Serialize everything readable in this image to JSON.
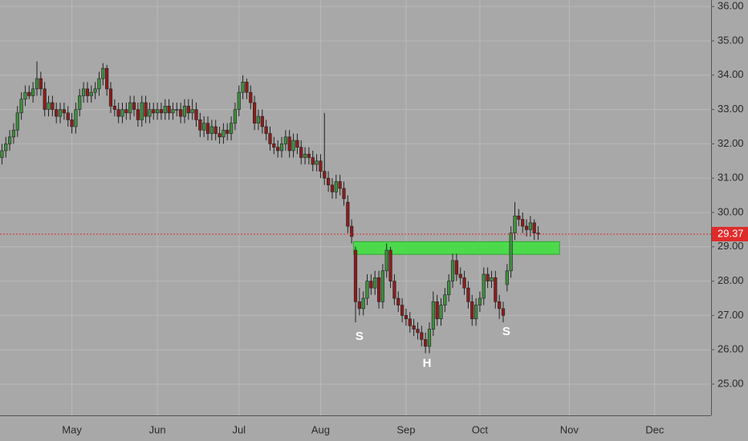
{
  "chart_data": {
    "type": "candlestick",
    "categories": [
      null,
      null,
      null,
      null,
      null,
      null,
      null,
      null,
      null,
      null,
      null,
      null,
      null,
      null,
      null,
      null,
      null,
      null,
      "May",
      null,
      null,
      null,
      null,
      null,
      null,
      null,
      null,
      null,
      null,
      null,
      null,
      null,
      null,
      null,
      null,
      null,
      null,
      null,
      null,
      null,
      "Jun",
      null,
      null,
      null,
      null,
      null,
      null,
      null,
      null,
      null,
      null,
      null,
      null,
      null,
      null,
      null,
      null,
      null,
      null,
      null,
      null,
      "Jul",
      null,
      null,
      null,
      null,
      null,
      null,
      null,
      null,
      null,
      null,
      null,
      null,
      null,
      null,
      null,
      null,
      null,
      null,
      null,
      null,
      "Aug",
      null,
      null,
      null,
      null,
      null,
      null,
      null,
      null,
      null,
      null,
      null,
      null,
      null,
      null,
      null,
      null,
      null,
      null,
      null,
      null,
      null,
      "Sep",
      null,
      null,
      null,
      null,
      null,
      null,
      null,
      null,
      null,
      null,
      null,
      null,
      null,
      null,
      null,
      null,
      null,
      null,
      "Oct",
      null,
      null,
      null,
      null,
      null,
      null,
      null,
      null,
      null,
      null,
      null,
      null,
      null,
      null,
      null,
      null,
      null,
      null,
      null,
      null,
      null,
      null,
      "Nov",
      null,
      null,
      null,
      null,
      null,
      null,
      null,
      null,
      null,
      null,
      null,
      null,
      null,
      null,
      null,
      null,
      null,
      null,
      null,
      null,
      null,
      "Dec",
      null,
      null,
      null,
      null,
      null,
      null,
      null,
      null,
      null,
      null,
      null,
      null,
      null,
      null
    ],
    "open": [
      31.6,
      31.8,
      32.0,
      32.2,
      32.4,
      32.9,
      33.3,
      33.5,
      33.4,
      33.6,
      33.9,
      33.6,
      33.0,
      33.2,
      33.0,
      32.8,
      33.0,
      32.9,
      32.7,
      32.5,
      33.0,
      33.4,
      33.6,
      33.4,
      33.5,
      33.6,
      33.9,
      34.2,
      33.6,
      33.1,
      33.0,
      32.8,
      33.0,
      32.9,
      33.2,
      33.0,
      32.7,
      33.2,
      32.8,
      33.0,
      32.9,
      33.0,
      32.9,
      33.1,
      32.9,
      33.0,
      33.0,
      32.8,
      33.1,
      32.9,
      33.0,
      32.7,
      32.4,
      32.6,
      32.3,
      32.5,
      32.3,
      32.2,
      32.4,
      32.3,
      32.6,
      33.0,
      33.5,
      33.8,
      33.5,
      33.2,
      32.6,
      32.8,
      32.5,
      32.3,
      32.0,
      31.9,
      31.8,
      32.0,
      32.2,
      31.8,
      32.1,
      31.9,
      31.6,
      31.7,
      31.6,
      31.4,
      31.5,
      31.2,
      31.0,
      30.8,
      30.6,
      30.9,
      30.7,
      30.3,
      29.6,
      28.9,
      27.4,
      27.2,
      27.5,
      28.0,
      27.8,
      28.1,
      27.4,
      28.3,
      28.9,
      28.0,
      27.5,
      27.3,
      27.0,
      26.9,
      26.7,
      26.6,
      26.5,
      26.3,
      26.1,
      26.6,
      27.4,
      26.9,
      27.3,
      27.6,
      28.0,
      28.6,
      28.2,
      28.1,
      27.8,
      27.4,
      26.9,
      27.3,
      27.5,
      28.2,
      28.0,
      28.1,
      27.4,
      27.2,
      27.9,
      28.3,
      29.4,
      29.9,
      29.8,
      29.6,
      29.5,
      29.7,
      29.4,
      null,
      null,
      null,
      null,
      null,
      null,
      null,
      null,
      null,
      null,
      null,
      null,
      null,
      null,
      null,
      null,
      null,
      null,
      null,
      null,
      null,
      null,
      null,
      null,
      null,
      null,
      null,
      null,
      null,
      null,
      null,
      null,
      null,
      null,
      null,
      null,
      null,
      null,
      null,
      null,
      null,
      null,
      null,
      null
    ],
    "high": [
      32.0,
      32.2,
      32.4,
      32.6,
      33.1,
      33.5,
      33.7,
      33.7,
      33.8,
      34.4,
      34.1,
      33.8,
      33.4,
      33.4,
      33.2,
      33.2,
      33.2,
      33.1,
      32.9,
      33.2,
      33.6,
      33.8,
      33.8,
      33.7,
      33.8,
      34.1,
      34.35,
      34.3,
      33.8,
      33.3,
      33.2,
      33.2,
      33.2,
      33.4,
      33.4,
      33.2,
      33.4,
      33.4,
      33.2,
      33.2,
      33.2,
      33.2,
      33.3,
      33.3,
      33.2,
      33.2,
      33.2,
      33.3,
      33.3,
      33.3,
      33.2,
      32.9,
      32.8,
      32.8,
      32.7,
      32.7,
      32.5,
      32.6,
      32.6,
      32.8,
      33.2,
      33.7,
      34.0,
      33.9,
      33.7,
      33.4,
      33.0,
      33.0,
      32.7,
      32.5,
      32.2,
      32.1,
      32.2,
      32.4,
      32.4,
      32.3,
      32.3,
      32.1,
      31.9,
      31.9,
      31.8,
      31.7,
      31.7,
      32.9,
      31.2,
      31.0,
      31.1,
      31.1,
      30.9,
      30.5,
      29.8,
      29.0,
      27.8,
      27.7,
      28.2,
      28.2,
      28.3,
      28.3,
      28.5,
      29.1,
      29.0,
      28.2,
      27.7,
      27.5,
      27.2,
      27.1,
      26.9,
      26.8,
      26.7,
      26.5,
      26.8,
      27.7,
      27.6,
      27.5,
      27.8,
      28.2,
      28.8,
      28.8,
      28.4,
      28.3,
      28.0,
      27.6,
      27.5,
      27.7,
      28.4,
      28.4,
      28.3,
      28.3,
      27.6,
      27.4,
      28.5,
      29.6,
      30.3,
      30.1,
      30.0,
      29.8,
      29.9,
      29.8,
      29.6,
      null,
      null,
      null,
      null,
      null,
      null,
      null,
      null,
      null,
      null,
      null,
      null,
      null,
      null,
      null,
      null,
      null,
      null,
      null,
      null,
      null,
      null,
      null,
      null,
      null,
      null,
      null,
      null,
      null,
      null,
      null,
      null,
      null,
      null,
      null,
      null,
      null,
      null,
      null,
      null,
      null,
      null,
      null,
      null
    ],
    "low": [
      31.4,
      31.6,
      31.8,
      32.0,
      32.2,
      32.7,
      33.1,
      33.3,
      33.2,
      33.4,
      33.4,
      32.8,
      32.8,
      32.8,
      32.6,
      32.6,
      32.7,
      32.5,
      32.3,
      32.3,
      32.8,
      33.2,
      33.2,
      33.2,
      33.3,
      33.4,
      33.7,
      33.4,
      32.9,
      32.8,
      32.6,
      32.6,
      32.7,
      32.7,
      32.8,
      32.5,
      32.5,
      32.6,
      32.6,
      32.7,
      32.7,
      32.7,
      32.7,
      32.7,
      32.7,
      32.8,
      32.6,
      32.6,
      32.7,
      32.7,
      32.5,
      32.2,
      32.2,
      32.1,
      32.1,
      32.1,
      32.0,
      32.0,
      32.1,
      32.1,
      32.4,
      32.8,
      33.3,
      33.3,
      33.0,
      32.4,
      32.4,
      32.3,
      32.1,
      31.8,
      31.7,
      31.6,
      31.6,
      31.8,
      31.6,
      31.6,
      31.7,
      31.4,
      31.4,
      31.4,
      31.2,
      31.2,
      31.0,
      30.8,
      30.6,
      30.4,
      30.4,
      30.5,
      30.2,
      29.4,
      29.1,
      26.8,
      27.0,
      27.0,
      27.3,
      27.6,
      27.6,
      27.2,
      27.2,
      28.1,
      27.8,
      27.3,
      27.1,
      26.8,
      26.7,
      26.5,
      26.4,
      26.3,
      26.1,
      25.9,
      25.9,
      26.4,
      26.7,
      26.7,
      27.1,
      27.4,
      27.8,
      28.0,
      27.9,
      27.6,
      27.2,
      26.7,
      26.7,
      27.1,
      27.3,
      27.8,
      27.8,
      27.2,
      26.9,
      26.8,
      27.7,
      28.1,
      29.2,
      29.6,
      29.4,
      29.3,
      29.3,
      29.2,
      29.2,
      null,
      null,
      null,
      null,
      null,
      null,
      null,
      null,
      null,
      null,
      null,
      null,
      null,
      null,
      null,
      null,
      null,
      null,
      null,
      null,
      null,
      null,
      null,
      null,
      null,
      null,
      null,
      null,
      null,
      null,
      null,
      null,
      null,
      null,
      null,
      null,
      null,
      null,
      null,
      null,
      null,
      null,
      null,
      null
    ],
    "close": [
      31.8,
      32.0,
      32.2,
      32.4,
      32.9,
      33.3,
      33.5,
      33.4,
      33.6,
      33.9,
      33.6,
      33.0,
      33.2,
      33.0,
      32.8,
      33.0,
      32.9,
      32.7,
      32.5,
      33.0,
      33.4,
      33.6,
      33.4,
      33.5,
      33.6,
      33.9,
      34.2,
      33.6,
      33.1,
      33.0,
      32.8,
      33.0,
      32.9,
      33.2,
      33.0,
      32.7,
      33.2,
      32.8,
      33.0,
      32.9,
      33.0,
      32.9,
      33.1,
      32.9,
      33.0,
      33.0,
      32.8,
      33.1,
      32.9,
      33.0,
      32.7,
      32.4,
      32.6,
      32.3,
      32.5,
      32.3,
      32.2,
      32.4,
      32.3,
      32.6,
      33.0,
      33.5,
      33.8,
      33.5,
      33.2,
      32.6,
      32.8,
      32.5,
      32.3,
      32.0,
      31.9,
      31.8,
      32.0,
      32.2,
      31.8,
      32.1,
      31.9,
      31.6,
      31.7,
      31.6,
      31.4,
      31.5,
      31.2,
      31.0,
      30.8,
      30.6,
      30.9,
      30.7,
      30.4,
      29.6,
      29.3,
      27.4,
      27.2,
      27.5,
      28.0,
      27.8,
      28.1,
      27.4,
      28.3,
      28.9,
      28.0,
      27.5,
      27.3,
      27.0,
      26.9,
      26.7,
      26.6,
      26.5,
      26.3,
      26.1,
      26.6,
      27.4,
      26.9,
      27.3,
      27.6,
      28.0,
      28.6,
      28.2,
      28.1,
      27.8,
      27.4,
      26.9,
      27.3,
      27.5,
      28.2,
      28.0,
      28.1,
      27.4,
      27.2,
      27.0,
      28.3,
      29.4,
      29.9,
      29.8,
      29.6,
      29.5,
      29.7,
      29.4,
      29.37,
      null,
      null,
      null,
      null,
      null,
      null,
      null,
      null,
      null,
      null,
      null,
      null,
      null,
      null,
      null,
      null,
      null,
      null,
      null,
      null,
      null,
      null,
      null,
      null,
      null,
      null,
      null,
      null,
      null,
      null,
      null,
      null,
      null,
      null,
      null,
      null,
      null,
      null,
      null,
      null,
      null,
      null,
      null,
      null
    ],
    "up_color": "#3f8f3f",
    "down_color": "#8e1c1c",
    "ylim": [
      24.09,
      36.19
    ],
    "yticks": [
      {
        "value": 25,
        "label": "25.00"
      },
      {
        "value": 26,
        "label": "26.00"
      },
      {
        "value": 27,
        "label": "27.00"
      },
      {
        "value": 28,
        "label": "28.00"
      },
      {
        "value": 29,
        "label": "29.00"
      },
      {
        "value": 30,
        "label": "30.00"
      },
      {
        "value": 31,
        "label": "31.00"
      },
      {
        "value": 32,
        "label": "32.00"
      },
      {
        "value": 33,
        "label": "33.00"
      },
      {
        "value": 34,
        "label": "34.00"
      },
      {
        "value": 35,
        "label": "35.00"
      },
      {
        "value": 36,
        "label": "36.00"
      }
    ],
    "grid": true,
    "last_price": {
      "value": 29.37,
      "color": "#e02b2b"
    },
    "zone": {
      "low": 28.78,
      "high": 29.15,
      "start": 91,
      "end": 144,
      "color": "#4cd94c"
    },
    "annotations": [
      {
        "text": "S",
        "x": 92,
        "y": 26.38
      },
      {
        "text": "H",
        "x": 109.4,
        "y": 25.6
      },
      {
        "text": "S",
        "x": 129.8,
        "y": 26.52
      }
    ]
  }
}
